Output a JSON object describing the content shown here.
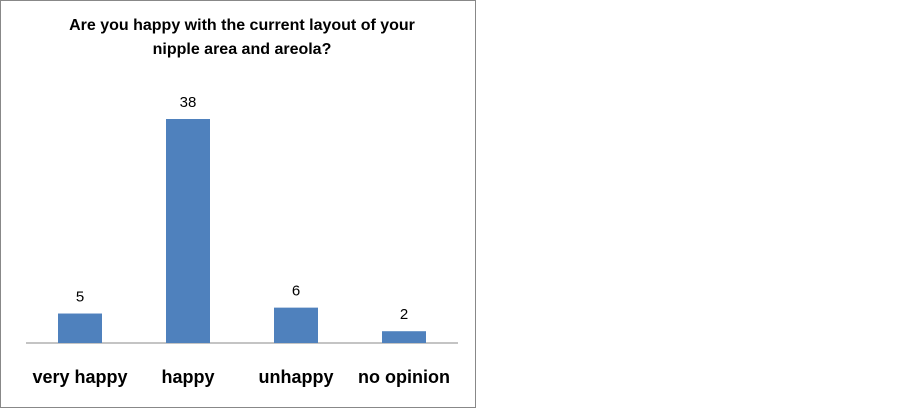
{
  "chart_data": {
    "type": "bar",
    "title": "Are you happy with the current layout of your nipple area and areola?",
    "categories": [
      "very happy",
      "happy",
      "unhappy",
      "no opinion"
    ],
    "values": [
      5,
      38,
      6,
      2
    ],
    "color": "#4f81bd"
  }
}
